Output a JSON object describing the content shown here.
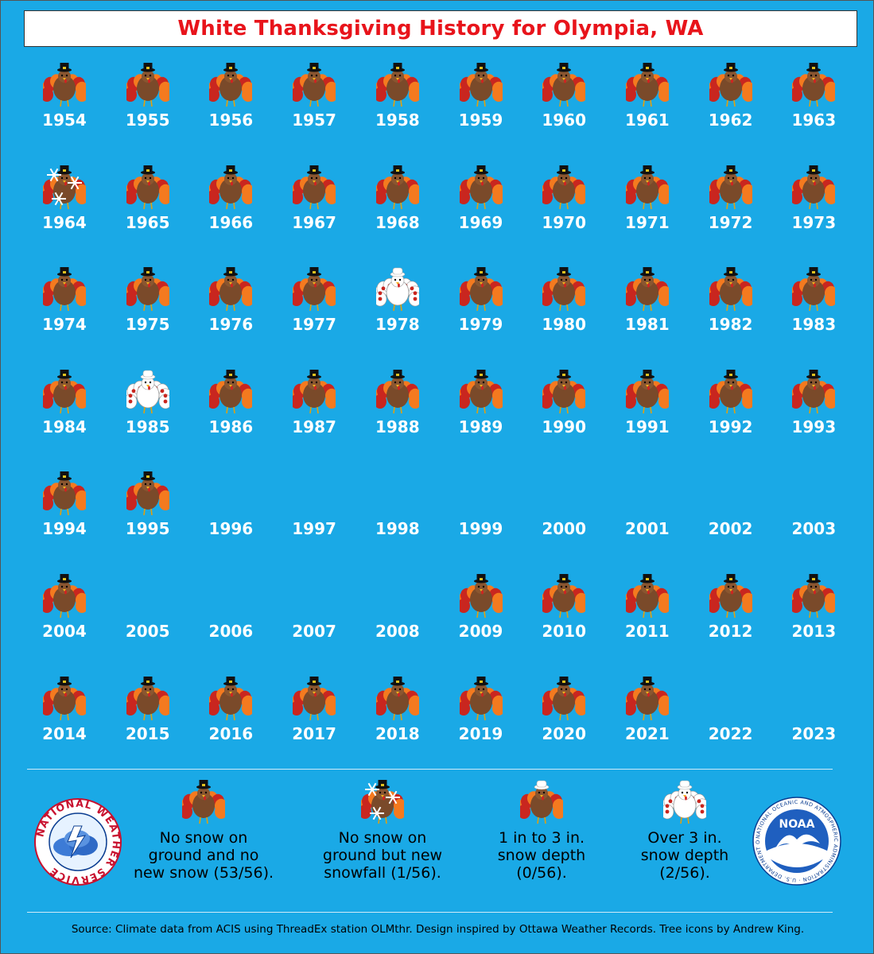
{
  "title": "White Thanksgiving History for Olympia, WA",
  "years": [
    {
      "year": "1954",
      "status": "none"
    },
    {
      "year": "1955",
      "status": "none"
    },
    {
      "year": "1956",
      "status": "none"
    },
    {
      "year": "1957",
      "status": "none"
    },
    {
      "year": "1958",
      "status": "none"
    },
    {
      "year": "1959",
      "status": "none"
    },
    {
      "year": "1960",
      "status": "none"
    },
    {
      "year": "1961",
      "status": "none"
    },
    {
      "year": "1962",
      "status": "none"
    },
    {
      "year": "1963",
      "status": "none"
    },
    {
      "year": "1964",
      "status": "snowfall"
    },
    {
      "year": "1965",
      "status": "none"
    },
    {
      "year": "1966",
      "status": "none"
    },
    {
      "year": "1967",
      "status": "none"
    },
    {
      "year": "1968",
      "status": "none"
    },
    {
      "year": "1969",
      "status": "none"
    },
    {
      "year": "1970",
      "status": "none"
    },
    {
      "year": "1971",
      "status": "none"
    },
    {
      "year": "1972",
      "status": "none"
    },
    {
      "year": "1973",
      "status": "none"
    },
    {
      "year": "1974",
      "status": "none"
    },
    {
      "year": "1975",
      "status": "none"
    },
    {
      "year": "1976",
      "status": "none"
    },
    {
      "year": "1977",
      "status": "none"
    },
    {
      "year": "1978",
      "status": "over3"
    },
    {
      "year": "1979",
      "status": "none"
    },
    {
      "year": "1980",
      "status": "none"
    },
    {
      "year": "1981",
      "status": "none"
    },
    {
      "year": "1982",
      "status": "none"
    },
    {
      "year": "1983",
      "status": "none"
    },
    {
      "year": "1984",
      "status": "none"
    },
    {
      "year": "1985",
      "status": "over3"
    },
    {
      "year": "1986",
      "status": "none"
    },
    {
      "year": "1987",
      "status": "none"
    },
    {
      "year": "1988",
      "status": "none"
    },
    {
      "year": "1989",
      "status": "none"
    },
    {
      "year": "1990",
      "status": "none"
    },
    {
      "year": "1991",
      "status": "none"
    },
    {
      "year": "1992",
      "status": "none"
    },
    {
      "year": "1993",
      "status": "none"
    },
    {
      "year": "1994",
      "status": "none"
    },
    {
      "year": "1995",
      "status": "none"
    },
    {
      "year": "1996",
      "status": "missing"
    },
    {
      "year": "1997",
      "status": "missing"
    },
    {
      "year": "1998",
      "status": "missing"
    },
    {
      "year": "1999",
      "status": "missing"
    },
    {
      "year": "2000",
      "status": "missing"
    },
    {
      "year": "2001",
      "status": "missing"
    },
    {
      "year": "2002",
      "status": "missing"
    },
    {
      "year": "2003",
      "status": "missing"
    },
    {
      "year": "2004",
      "status": "none"
    },
    {
      "year": "2005",
      "status": "missing"
    },
    {
      "year": "2006",
      "status": "missing"
    },
    {
      "year": "2007",
      "status": "missing"
    },
    {
      "year": "2008",
      "status": "missing"
    },
    {
      "year": "2009",
      "status": "none"
    },
    {
      "year": "2010",
      "status": "none"
    },
    {
      "year": "2011",
      "status": "none"
    },
    {
      "year": "2012",
      "status": "none"
    },
    {
      "year": "2013",
      "status": "none"
    },
    {
      "year": "2014",
      "status": "none"
    },
    {
      "year": "2015",
      "status": "none"
    },
    {
      "year": "2016",
      "status": "none"
    },
    {
      "year": "2017",
      "status": "none"
    },
    {
      "year": "2018",
      "status": "none"
    },
    {
      "year": "2019",
      "status": "none"
    },
    {
      "year": "2020",
      "status": "none"
    },
    {
      "year": "2021",
      "status": "none"
    },
    {
      "year": "2022",
      "status": "missing"
    },
    {
      "year": "2023",
      "status": "missing"
    }
  ],
  "legend": [
    {
      "key": "none",
      "line1": "No snow on",
      "line2": "ground and no",
      "line3": "new snow (53/56)."
    },
    {
      "key": "snowfall",
      "line1": "No snow on",
      "line2": "ground but new",
      "line3": "snowfall (1/56)."
    },
    {
      "key": "1to3",
      "line1": "1 in to 3 in.",
      "line2": "snow depth",
      "line3": "(0/56)."
    },
    {
      "key": "over3",
      "line1": "Over 3 in.",
      "line2": "snow depth",
      "line3": "(2/56)."
    }
  ],
  "source": "Source: Climate data from ACIS using ThreadEx station OLMthr. Design inspired by Ottawa Weather Records. Tree icons by Andrew King.",
  "logos": {
    "nws_left_text": "NATIONAL WEATHER SERVICE",
    "noaa_text": "NOAA",
    "noaa_ring_text": "NATIONAL OCEANIC AND ATMOSPHERIC ADMINISTRATION · U.S. DEPARTMENT OF COMMERCE"
  },
  "colors": {
    "background": "#1aa9e6",
    "title": "#e8141b",
    "turkey_body": "#7a4a2a",
    "feather_orange": "#f47a1f",
    "feather_red": "#c9261f",
    "snow_white": "#ffffff"
  }
}
